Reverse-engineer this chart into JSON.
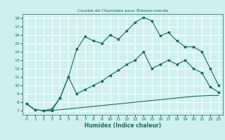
{
  "title": "Courbe de l'humidex pour Bremervoerde",
  "xlabel": "Humidex (Indice chaleur)",
  "xlim": [
    -0.5,
    23.5
  ],
  "ylim": [
    6.5,
    18.5
  ],
  "yticks": [
    7,
    8,
    9,
    10,
    11,
    12,
    13,
    14,
    15,
    16,
    17,
    18
  ],
  "xticks": [
    0,
    1,
    2,
    3,
    4,
    5,
    6,
    7,
    8,
    9,
    10,
    11,
    12,
    13,
    14,
    15,
    16,
    17,
    18,
    19,
    20,
    21,
    22,
    23
  ],
  "bg_color": "#cff0f0",
  "line_color": "#1a6b5a",
  "grid_color": "#ffffff",
  "line1_x": [
    0,
    1,
    2,
    3,
    4,
    5,
    6,
    7,
    8,
    9,
    10,
    11,
    12,
    13,
    14,
    15,
    16,
    17,
    18,
    19,
    20,
    21,
    22,
    23
  ],
  "line1_y": [
    7.8,
    7.1,
    7.0,
    7.0,
    7.1,
    7.2,
    7.3,
    7.4,
    7.5,
    7.6,
    7.7,
    7.8,
    7.9,
    8.0,
    8.1,
    8.2,
    8.3,
    8.4,
    8.5,
    8.6,
    8.7,
    8.75,
    8.8,
    8.8
  ],
  "line2_x": [
    0,
    1,
    2,
    3,
    4,
    5,
    6,
    7,
    8,
    9,
    10,
    11,
    12,
    13,
    14,
    15,
    16,
    17,
    18,
    19,
    20,
    21,
    22,
    23
  ],
  "line2_y": [
    7.8,
    7.1,
    7.0,
    7.0,
    8.5,
    11.0,
    9.0,
    9.5,
    10.0,
    10.5,
    11.2,
    11.8,
    12.5,
    13.0,
    14.0,
    12.0,
    12.5,
    13.0,
    12.5,
    13.0,
    12.0,
    11.5,
    9.8,
    9.2
  ],
  "line3_x": [
    0,
    1,
    2,
    3,
    4,
    5,
    6,
    7,
    8,
    9,
    10,
    11,
    12,
    13,
    14,
    15,
    16,
    17,
    18,
    19,
    20,
    21,
    22,
    23
  ],
  "line3_y": [
    7.8,
    7.1,
    7.0,
    7.2,
    8.5,
    11.0,
    14.3,
    15.8,
    15.3,
    15.0,
    16.0,
    15.5,
    16.5,
    17.5,
    18.1,
    17.7,
    15.9,
    16.3,
    15.3,
    14.6,
    14.6,
    14.0,
    12.0,
    10.0
  ]
}
